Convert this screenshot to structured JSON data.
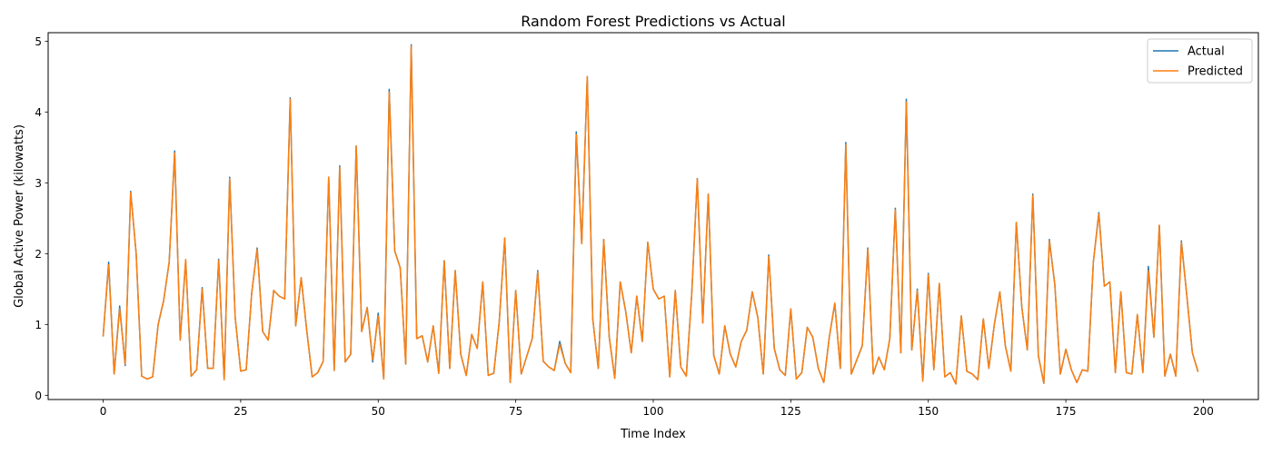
{
  "chart_data": {
    "type": "line",
    "title": "Random Forest Predictions vs Actual",
    "xlabel": "Time Index",
    "ylabel": "Global Active Power (kilowatts)",
    "xlim": [
      -10,
      210
    ],
    "ylim": [
      -0.06,
      5.12
    ],
    "xticks": [
      0,
      25,
      50,
      75,
      100,
      125,
      150,
      175,
      200
    ],
    "yticks": [
      0,
      1,
      2,
      3,
      4,
      5
    ],
    "legend_position": "top-right",
    "grid": false,
    "series": [
      {
        "name": "Actual",
        "color": "#1f77b4",
        "values": [
          0.84,
          1.88,
          0.3,
          1.26,
          0.42,
          2.88,
          2.0,
          0.27,
          0.23,
          0.26,
          1.0,
          1.34,
          1.88,
          3.45,
          0.78,
          1.9,
          0.27,
          0.36,
          1.52,
          0.38,
          0.38,
          1.92,
          0.22,
          3.08,
          1.1,
          0.34,
          0.36,
          1.44,
          2.08,
          0.9,
          0.78,
          1.48,
          1.4,
          1.36,
          4.2,
          0.98,
          1.66,
          0.92,
          0.26,
          0.32,
          0.48,
          3.08,
          0.35,
          3.24,
          0.47,
          0.58,
          3.52,
          0.9,
          1.24,
          0.47,
          1.16,
          0.23,
          4.32,
          2.04,
          1.8,
          0.44,
          4.95,
          0.8,
          0.84,
          0.47,
          0.98,
          0.31,
          1.9,
          0.38,
          1.76,
          0.58,
          0.28,
          0.86,
          0.66,
          1.6,
          0.28,
          0.31,
          1.04,
          2.22,
          0.18,
          1.48,
          0.3,
          0.55,
          0.8,
          1.76,
          0.48,
          0.4,
          0.35,
          0.76,
          0.45,
          0.32,
          3.72,
          2.14,
          4.5,
          1.08,
          0.38,
          2.2,
          0.82,
          0.24,
          1.6,
          1.18,
          0.6,
          1.4,
          0.76,
          2.16,
          1.5,
          1.36,
          1.4,
          0.26,
          1.48,
          0.4,
          0.27,
          1.44,
          3.06,
          1.02,
          2.84,
          0.56,
          0.3,
          0.98,
          0.58,
          0.4,
          0.76,
          0.92,
          1.46,
          1.1,
          0.3,
          1.98,
          0.66,
          0.36,
          0.28,
          1.22,
          0.23,
          0.32,
          0.96,
          0.82,
          0.38,
          0.18,
          0.82,
          1.3,
          0.38,
          3.57,
          0.3,
          0.5,
          0.7,
          2.08,
          0.3,
          0.54,
          0.36,
          0.8,
          2.64,
          0.6,
          4.18,
          0.64,
          1.5,
          0.2,
          1.72,
          0.36,
          1.58,
          0.26,
          0.32,
          0.16,
          1.12,
          0.34,
          0.3,
          0.22,
          1.08,
          0.38,
          1.0,
          1.46,
          0.7,
          0.34,
          2.44,
          1.24,
          0.64,
          2.84,
          0.56,
          0.17,
          2.2,
          1.56,
          0.3,
          0.65,
          0.36,
          0.18,
          0.36,
          0.34,
          1.88,
          2.58,
          1.54,
          1.6,
          0.32,
          1.46,
          0.32,
          0.3,
          1.14,
          0.32,
          1.82,
          0.82,
          2.4,
          0.27,
          0.58,
          0.27,
          2.18,
          1.4,
          0.6,
          0.34
        ]
      },
      {
        "name": "Predicted",
        "color": "#ff7f0e",
        "values": [
          0.84,
          1.84,
          0.3,
          1.22,
          0.44,
          2.86,
          2.0,
          0.27,
          0.23,
          0.26,
          1.0,
          1.34,
          1.88,
          3.42,
          0.78,
          1.92,
          0.27,
          0.36,
          1.5,
          0.38,
          0.38,
          1.9,
          0.22,
          3.06,
          1.1,
          0.34,
          0.36,
          1.44,
          2.06,
          0.9,
          0.78,
          1.48,
          1.4,
          1.36,
          4.18,
          0.98,
          1.66,
          0.92,
          0.26,
          0.32,
          0.48,
          3.08,
          0.35,
          3.22,
          0.47,
          0.58,
          3.52,
          0.9,
          1.24,
          0.5,
          1.12,
          0.23,
          4.28,
          2.04,
          1.8,
          0.44,
          4.93,
          0.8,
          0.84,
          0.47,
          0.98,
          0.31,
          1.9,
          0.38,
          1.76,
          0.58,
          0.28,
          0.86,
          0.66,
          1.6,
          0.28,
          0.31,
          1.04,
          2.22,
          0.18,
          1.48,
          0.3,
          0.55,
          0.8,
          1.74,
          0.48,
          0.4,
          0.35,
          0.72,
          0.45,
          0.32,
          3.68,
          2.14,
          4.5,
          1.08,
          0.38,
          2.2,
          0.82,
          0.24,
          1.6,
          1.18,
          0.6,
          1.4,
          0.76,
          2.16,
          1.5,
          1.36,
          1.4,
          0.26,
          1.48,
          0.4,
          0.27,
          1.44,
          3.06,
          1.02,
          2.84,
          0.56,
          0.3,
          0.98,
          0.58,
          0.4,
          0.76,
          0.92,
          1.46,
          1.1,
          0.3,
          1.96,
          0.66,
          0.36,
          0.28,
          1.22,
          0.23,
          0.32,
          0.96,
          0.82,
          0.38,
          0.18,
          0.82,
          1.3,
          0.38,
          3.54,
          0.3,
          0.5,
          0.7,
          2.06,
          0.3,
          0.54,
          0.36,
          0.8,
          2.62,
          0.6,
          4.14,
          0.64,
          1.48,
          0.2,
          1.7,
          0.36,
          1.58,
          0.26,
          0.32,
          0.16,
          1.12,
          0.34,
          0.3,
          0.22,
          1.08,
          0.38,
          1.0,
          1.46,
          0.7,
          0.34,
          2.44,
          1.24,
          0.64,
          2.82,
          0.56,
          0.17,
          2.18,
          1.56,
          0.3,
          0.65,
          0.36,
          0.18,
          0.36,
          0.34,
          1.88,
          2.56,
          1.54,
          1.6,
          0.32,
          1.46,
          0.32,
          0.3,
          1.14,
          0.32,
          1.76,
          0.82,
          2.4,
          0.27,
          0.58,
          0.27,
          2.16,
          1.4,
          0.6,
          0.34
        ]
      }
    ]
  }
}
